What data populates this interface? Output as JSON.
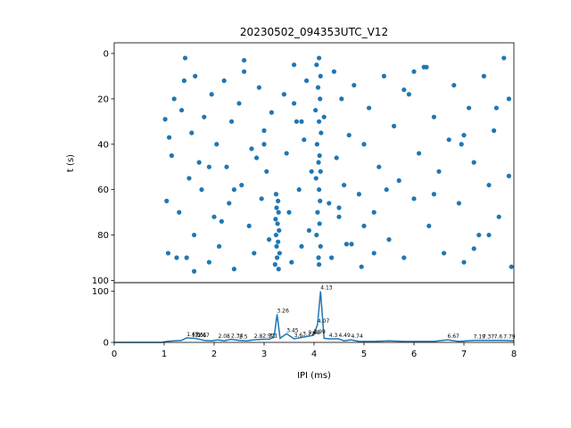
{
  "chart_data": [
    {
      "type": "scatter",
      "title": "20230502_094353UTC_V12",
      "y_label": "t (s)",
      "color": "#1f77b4",
      "xlim": [
        0,
        8
      ],
      "ylim": [
        -4.7,
        101
      ],
      "y_inverted": true,
      "yticks": [
        0,
        20,
        40,
        60,
        80,
        100
      ],
      "x": [
        3.24,
        3.28,
        3.25,
        3.29,
        3.23,
        3.27,
        3.3,
        3.24,
        3.28,
        3.25,
        3.31,
        3.26,
        3.22,
        3.29,
        4.1,
        4.05,
        4.13,
        4.08,
        4.12,
        4.03,
        4.1,
        4.14,
        4.06,
        4.11,
        4.09,
        4.13,
        4.04,
        4.1,
        4.12,
        4.07,
        4.11,
        4.05,
        4.13,
        4.09,
        4.1,
        1.02,
        1.05,
        1.1,
        1.08,
        1.15,
        1.2,
        1.3,
        1.35,
        1.42,
        1.45,
        1.5,
        1.55,
        1.6,
        1.62,
        1.7,
        1.75,
        1.8,
        1.9,
        1.95,
        2.0,
        2.05,
        2.1,
        2.2,
        2.25,
        2.3,
        2.35,
        2.4,
        2.5,
        2.55,
        2.6,
        2.7,
        2.75,
        2.8,
        2.9,
        2.95,
        3.0,
        3.05,
        3.1,
        3.15,
        3.4,
        3.45,
        3.5,
        3.55,
        3.6,
        3.65,
        3.7,
        3.75,
        3.8,
        3.85,
        3.9,
        3.95,
        4.2,
        4.3,
        4.35,
        4.4,
        4.45,
        4.5,
        4.55,
        4.6,
        4.7,
        4.75,
        4.8,
        4.9,
        4.95,
        5.0,
        5.1,
        5.2,
        5.3,
        5.4,
        5.5,
        5.6,
        5.7,
        5.8,
        5.9,
        6.0,
        6.1,
        6.2,
        6.3,
        6.4,
        6.5,
        6.6,
        6.7,
        6.8,
        6.9,
        7.0,
        7.1,
        7.2,
        7.3,
        7.4,
        7.5,
        7.6,
        7.7,
        7.8,
        7.9,
        7.95,
        1.4,
        1.9,
        2.6,
        3.0,
        3.6,
        4.5,
        5.2,
        5.8,
        6.4,
        7.0,
        7.5,
        7.9,
        1.25,
        2.15,
        2.85,
        3.75,
        4.65,
        5.45,
        6.25,
        6.95,
        7.65,
        1.6,
        2.4,
        5.0,
        6.0,
        7.2
      ],
      "y": [
        62,
        65,
        68,
        70,
        73,
        75,
        78,
        80,
        83,
        85,
        88,
        90,
        93,
        95,
        2,
        5,
        10,
        15,
        20,
        25,
        30,
        35,
        40,
        45,
        48,
        52,
        55,
        60,
        65,
        70,
        75,
        80,
        85,
        90,
        93,
        29,
        65,
        37,
        88,
        45,
        20,
        70,
        25,
        2,
        90,
        55,
        35,
        80,
        10,
        48,
        60,
        28,
        92,
        18,
        72,
        40,
        85,
        12,
        50,
        66,
        30,
        95,
        22,
        58,
        8,
        76,
        42,
        88,
        15,
        64,
        34,
        52,
        82,
        26,
        18,
        44,
        70,
        92,
        5,
        30,
        60,
        85,
        38,
        12,
        78,
        52,
        28,
        66,
        90,
        8,
        46,
        72,
        20,
        58,
        36,
        84,
        14,
        62,
        94,
        40,
        24,
        70,
        50,
        10,
        82,
        32,
        56,
        90,
        18,
        64,
        44,
        6,
        76,
        28,
        52,
        88,
        38,
        14,
        66,
        92,
        24,
        48,
        80,
        10,
        58,
        34,
        72,
        2,
        20,
        94,
        12,
        50,
        3,
        40,
        22,
        68,
        88,
        16,
        62,
        36,
        80,
        54,
        90,
        74,
        46,
        30,
        84,
        60,
        6,
        40,
        24,
        96,
        60,
        76,
        8,
        86
      ],
      "x_only_shared": true
    },
    {
      "type": "line",
      "x_label": "IPI (ms)",
      "color": "#1f77b4",
      "xlim": [
        0,
        8
      ],
      "xticks": [
        0,
        1,
        2,
        3,
        4,
        5,
        6,
        7,
        8
      ],
      "ylim": [
        0,
        117
      ],
      "yticks": [
        0,
        100
      ],
      "x": [
        0,
        0.95,
        1.05,
        1.2,
        1.35,
        1.45,
        1.55,
        1.61,
        1.67,
        1.8,
        1.95,
        2.08,
        2.2,
        2.34,
        2.5,
        2.65,
        2.8,
        2.97,
        3.1,
        3.2,
        3.26,
        3.32,
        3.45,
        3.6,
        3.77,
        3.88,
        3.99,
        4.07,
        4.13,
        4.2,
        4.3,
        4.49,
        4.6,
        4.74,
        4.9,
        5.2,
        5.5,
        5.8,
        6.1,
        6.4,
        6.67,
        6.9,
        7.19,
        7.37,
        7.6,
        7.79,
        8
      ],
      "values": [
        0,
        0,
        2,
        3,
        4,
        9,
        8,
        8,
        7,
        4,
        3,
        5,
        3,
        6,
        4,
        3,
        5,
        6,
        6,
        10,
        55,
        8,
        17,
        7,
        10,
        12,
        14,
        35,
        100,
        8,
        7,
        7,
        3,
        5,
        2,
        2,
        3,
        2,
        2,
        2,
        5,
        2,
        4,
        4,
        4,
        4,
        3
      ],
      "peaks": {
        "x": [
          1.45,
          1.55,
          1.61,
          1.67,
          2.08,
          2.34,
          2.5,
          2.8,
          2.97,
          3.1,
          3.26,
          3.45,
          3.6,
          3.77,
          3.88,
          3.99,
          4.07,
          4.13,
          4.3,
          4.49,
          4.74,
          6.67,
          7.19,
          7.37,
          7.6,
          7.79
        ],
        "y": [
          9,
          8,
          8,
          7,
          5,
          6,
          4,
          5,
          6,
          6,
          55,
          17,
          7,
          10,
          12,
          14,
          35,
          100,
          7,
          7,
          5,
          5,
          4,
          4,
          4,
          4
        ]
      }
    }
  ]
}
